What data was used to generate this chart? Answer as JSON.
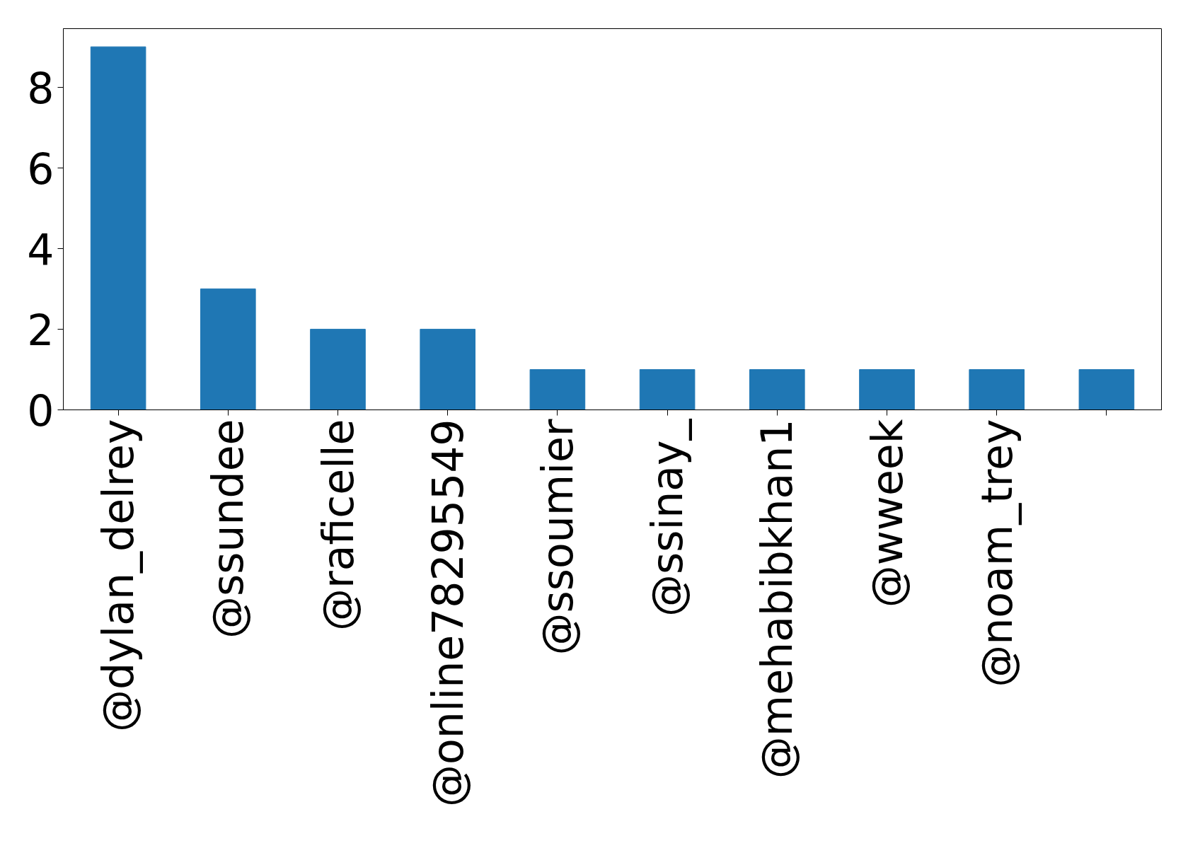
{
  "chart_data": {
    "type": "bar",
    "categories": [
      "@dylan_delrey",
      "@ssundee",
      "@raficelle",
      "@online78295549",
      "@ssoumier",
      "@ssinay_",
      "@mehabibkhan1",
      "@wweek",
      "@noam_trey",
      null
    ],
    "values": [
      9,
      3,
      2,
      2,
      1,
      1,
      1,
      1,
      1,
      1
    ],
    "color": "#1f77b4",
    "ylim": [
      0,
      9.45
    ],
    "yticks": [
      0,
      2,
      4,
      6,
      8
    ],
    "grid": false
  }
}
